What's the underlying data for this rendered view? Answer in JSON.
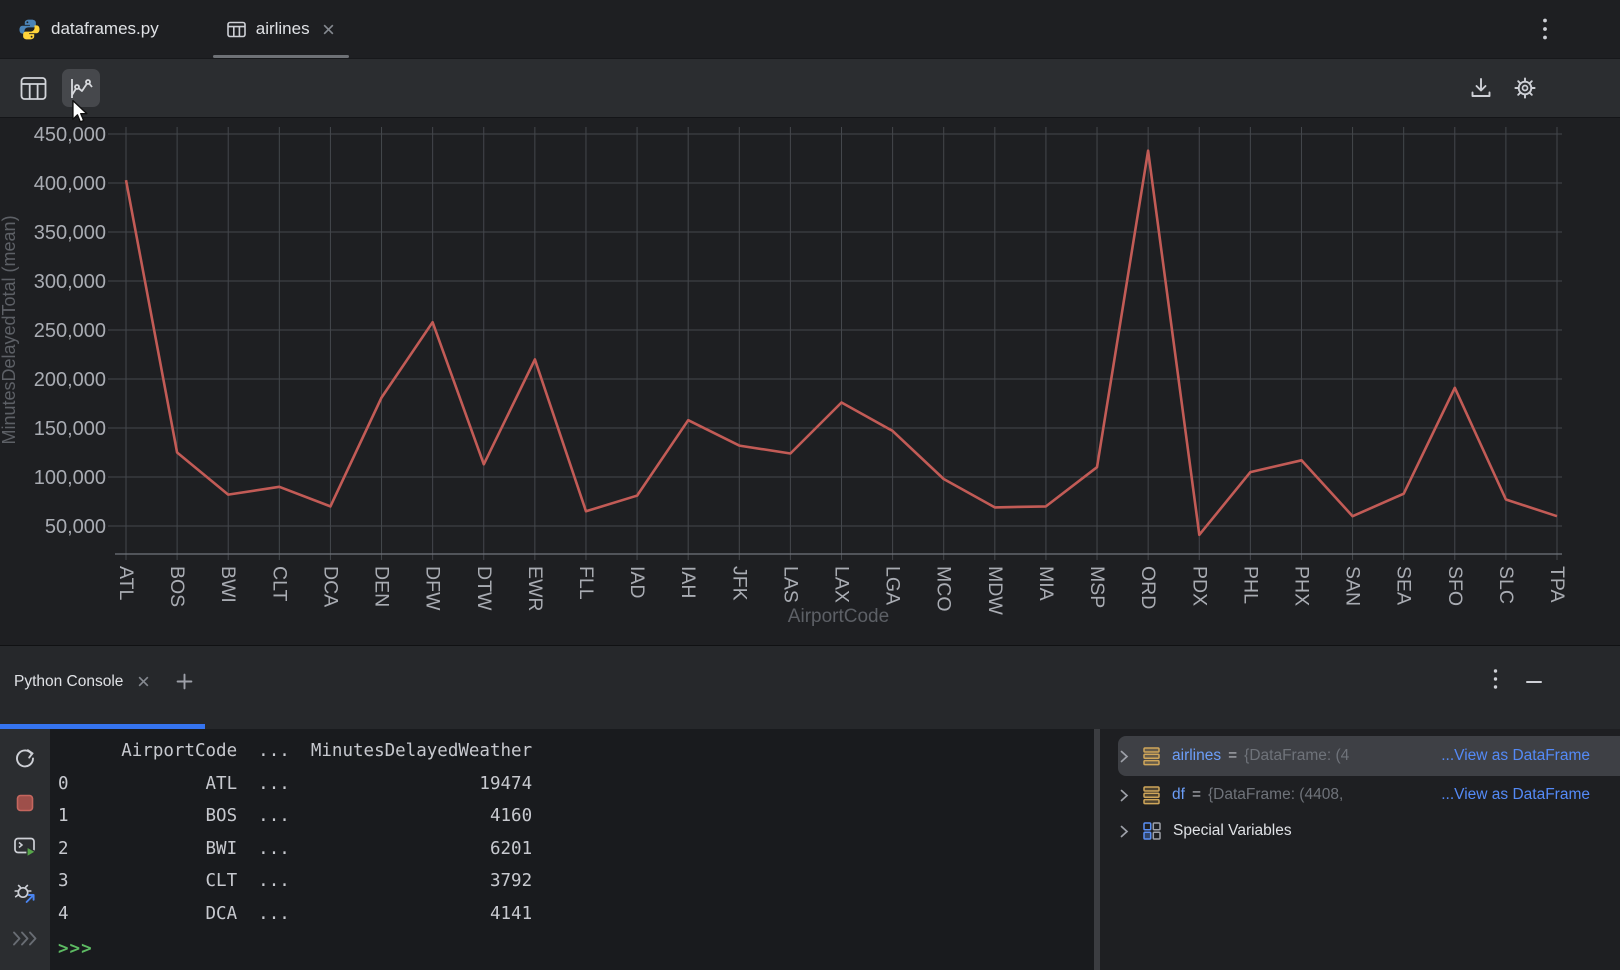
{
  "editor_tabs": {
    "tabs": [
      {
        "label": "dataframes.py",
        "icon": "python-icon",
        "active": false
      },
      {
        "label": "airlines",
        "icon": "table-icon",
        "active": true,
        "closable": true
      }
    ]
  },
  "toolbar": {
    "left_icons": [
      "table-view-icon",
      "chart-view-icon"
    ],
    "selected": "chart-view-icon",
    "right_icons": [
      "download-icon",
      "settings-gear-icon"
    ]
  },
  "chart_data": {
    "type": "line",
    "title": "",
    "xlabel": "AirportCode",
    "ylabel": "MinutesDelayedTotal (mean)",
    "categories": [
      "ATL",
      "BOS",
      "BWI",
      "CLT",
      "DCA",
      "DEN",
      "DFW",
      "DTW",
      "EWR",
      "FLL",
      "IAD",
      "IAH",
      "JFK",
      "LAS",
      "LAX",
      "LGA",
      "MCO",
      "MDW",
      "MIA",
      "MSP",
      "ORD",
      "PDX",
      "PHL",
      "PHX",
      "SAN",
      "SEA",
      "SFO",
      "SLC",
      "TPA"
    ],
    "values": [
      403000,
      125000,
      82000,
      90000,
      70000,
      181000,
      258000,
      113000,
      220000,
      65000,
      81000,
      158000,
      132000,
      124000,
      176000,
      147000,
      98000,
      69000,
      70000,
      110000,
      433000,
      41000,
      105000,
      117000,
      60000,
      83000,
      191000,
      77000,
      60000
    ],
    "ytick_values": [
      50000,
      100000,
      150000,
      200000,
      250000,
      300000,
      350000,
      400000,
      450000
    ],
    "ytick_labels": [
      "50,000",
      "100,000",
      "150,000",
      "200,000",
      "250,000",
      "300,000",
      "350,000",
      "400,000",
      "450,000"
    ],
    "ylim": [
      22000,
      460000
    ],
    "grid": true,
    "legend": "none",
    "line_color": "#c25b56"
  },
  "console_panel": {
    "tab_label": "Python Console",
    "header_icons": [
      "close-icon",
      "plus-icon",
      "kebab-menu-icon",
      "minimize-icon"
    ],
    "left_toolbar_icons": [
      "rerun-icon",
      "stop-icon",
      "run-console-icon",
      "attach-debugger-icon",
      "expand-chevrons-icon"
    ],
    "output_text": "      AirportCode  ...  MinutesDelayedWeather\n0             ATL  ...                  19474\n1             BOS  ...                   4160\n2             BWI  ...                   6201\n3             CLT  ...                   3792\n4             DCA  ...                   4141",
    "table": {
      "columns": [
        "",
        "AirportCode",
        "...",
        "MinutesDelayedWeather"
      ],
      "rows": [
        [
          "0",
          "ATL",
          "...",
          "19474"
        ],
        [
          "1",
          "BOS",
          "...",
          "4160"
        ],
        [
          "2",
          "BWI",
          "...",
          "6201"
        ],
        [
          "3",
          "CLT",
          "...",
          "3792"
        ],
        [
          "4",
          "DCA",
          "...",
          "4141"
        ]
      ]
    },
    "prompt": ">>>"
  },
  "variables_panel": {
    "rows": [
      {
        "name": "airlines",
        "eq": "=",
        "value": "{DataFrame: (4",
        "link": "...View as DataFrame",
        "selected": true,
        "icon": "dataframe-icon"
      },
      {
        "name": "df",
        "eq": "=",
        "value": "{DataFrame: (4408,",
        "link": "...View as DataFrame",
        "selected": false,
        "icon": "dataframe-icon"
      },
      {
        "name": "Special Variables",
        "selected": false,
        "icon": "special-variables-icon"
      }
    ]
  },
  "colors": {
    "background": "#1e1f22",
    "toolbar_bg": "#2b2d30",
    "console_bg": "#191b1e",
    "selection_bg": "#3e4045",
    "accent_blue": "#3574f0",
    "link_blue": "#548af7",
    "variable_blue": "#6c9ef8",
    "prompt_green": "#5dbb63",
    "chart_line_red": "#c25b56",
    "gridline": "#44474c",
    "tick_label": "#a9acb3",
    "axis_title": "#5d6066",
    "python_blue": "#4b84b8",
    "python_yellow": "#ffd43b",
    "dataframe_gold": "#cfa65a"
  }
}
